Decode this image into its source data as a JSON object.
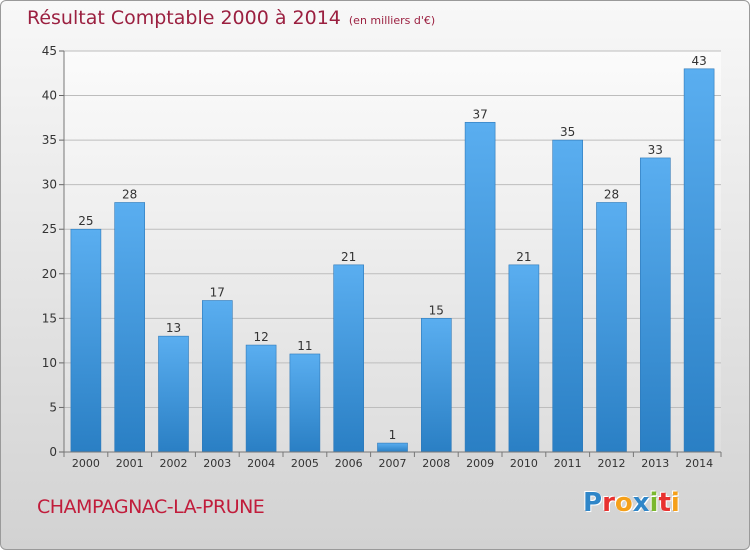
{
  "header": {
    "title": "Résultat Comptable 2000 à 2014",
    "unit": "(en milliers d'€)"
  },
  "footer": {
    "place": "CHAMPAGNAC-LA-PRUNE"
  },
  "brand": {
    "letters": [
      {
        "char": "P",
        "color": "#2f86c8"
      },
      {
        "char": "r",
        "color": "#e8312f"
      },
      {
        "char": "o",
        "color": "#f5a01a"
      },
      {
        "char": "x",
        "color": "#2f86c8"
      },
      {
        "char": "i",
        "color": "#7bb82e"
      },
      {
        "char": "t",
        "color": "#e8312f"
      },
      {
        "char": "i",
        "color": "#f5a01a"
      }
    ]
  },
  "colors": {
    "bar_top": "#5aaef0",
    "bar_bottom": "#2a7fc4",
    "grid": "#bdbdbd",
    "axis_text": "#333333"
  },
  "chart_data": {
    "type": "bar",
    "title": "Résultat Comptable 2000 à 2014",
    "subtitle": "(en milliers d'€)",
    "xlabel": "",
    "ylabel": "",
    "categories": [
      "2000",
      "2001",
      "2002",
      "2003",
      "2004",
      "2005",
      "2006",
      "2007",
      "2008",
      "2009",
      "2010",
      "2011",
      "2012",
      "2013",
      "2014"
    ],
    "values": [
      25,
      28,
      13,
      17,
      12,
      11,
      21,
      1,
      15,
      37,
      21,
      35,
      28,
      33,
      43
    ],
    "ylim": [
      0,
      45
    ],
    "yticks": [
      0,
      5,
      10,
      15,
      20,
      25,
      30,
      35,
      40,
      45
    ],
    "grid": true,
    "data_labels": true
  }
}
